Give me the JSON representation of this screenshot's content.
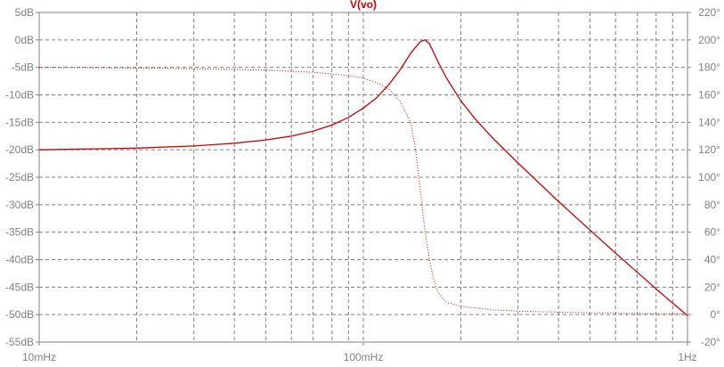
{
  "chart_data": {
    "type": "line",
    "title": "V(vo)",
    "x_scale": "log",
    "xlim": [
      0.01,
      1
    ],
    "x_tick_values": [
      0.01,
      0.1,
      1
    ],
    "x_tick_labels": [
      "10mHz",
      "100mHz",
      "1Hz"
    ],
    "ylim_left": [
      -55,
      5
    ],
    "y_left_ticks": [
      5,
      0,
      -5,
      -10,
      -15,
      -20,
      -25,
      -30,
      -35,
      -40,
      -45,
      -50,
      -55
    ],
    "y_left_tick_labels": [
      "5dB",
      "0dB",
      "-5dB",
      "-10dB",
      "-15dB",
      "-20dB",
      "-25dB",
      "-30dB",
      "-35dB",
      "-40dB",
      "-45dB",
      "-50dB",
      "-55dB"
    ],
    "ylim_right": [
      -20,
      220
    ],
    "y_right_ticks": [
      220,
      200,
      180,
      160,
      140,
      120,
      100,
      80,
      60,
      40,
      20,
      0,
      -20
    ],
    "y_right_tick_labels": [
      "220°",
      "200°",
      "180°",
      "160°",
      "140°",
      "120°",
      "100°",
      "80°",
      "60°",
      "40°",
      "20°",
      "0°",
      "-20°"
    ],
    "grid": true,
    "series": [
      {
        "style": "solid",
        "axis": "left",
        "color": "#cc0000",
        "x": [
          0.01,
          0.02,
          0.03,
          0.04,
          0.05,
          0.06,
          0.07,
          0.08,
          0.09,
          0.1,
          0.11,
          0.12,
          0.13,
          0.14,
          0.15,
          0.155,
          0.16,
          0.17,
          0.18,
          0.2,
          0.22,
          0.25,
          0.3,
          0.4,
          0.5,
          0.6,
          0.7,
          0.8,
          0.9,
          1.0
        ],
        "values": [
          -20,
          -19.7,
          -19.3,
          -18.8,
          -18.2,
          -17.5,
          -16.6,
          -15.5,
          -14.1,
          -12.4,
          -10.5,
          -8.1,
          -5.4,
          -2.4,
          -0.3,
          0,
          -0.7,
          -4.0,
          -6.8,
          -11.1,
          -14.2,
          -17.8,
          -22.4,
          -29.4,
          -34.6,
          -38.8,
          -42.3,
          -45.3,
          -47.9,
          -50.2
        ]
      },
      {
        "style": "dotted",
        "axis": "right",
        "color": "#cc0000",
        "x": [
          0.01,
          0.02,
          0.03,
          0.05,
          0.07,
          0.09,
          0.1,
          0.11,
          0.12,
          0.13,
          0.14,
          0.145,
          0.15,
          0.155,
          0.16,
          0.165,
          0.17,
          0.18,
          0.2,
          0.25,
          0.3,
          0.4,
          0.5,
          0.7,
          1.0
        ],
        "values": [
          180,
          179.5,
          179,
          178,
          176.5,
          174,
          172,
          169,
          164,
          155,
          140,
          120,
          90,
          60,
          40,
          25,
          16,
          9,
          6,
          3.5,
          2.5,
          1.8,
          1.3,
          0.8,
          0.5
        ]
      }
    ]
  }
}
